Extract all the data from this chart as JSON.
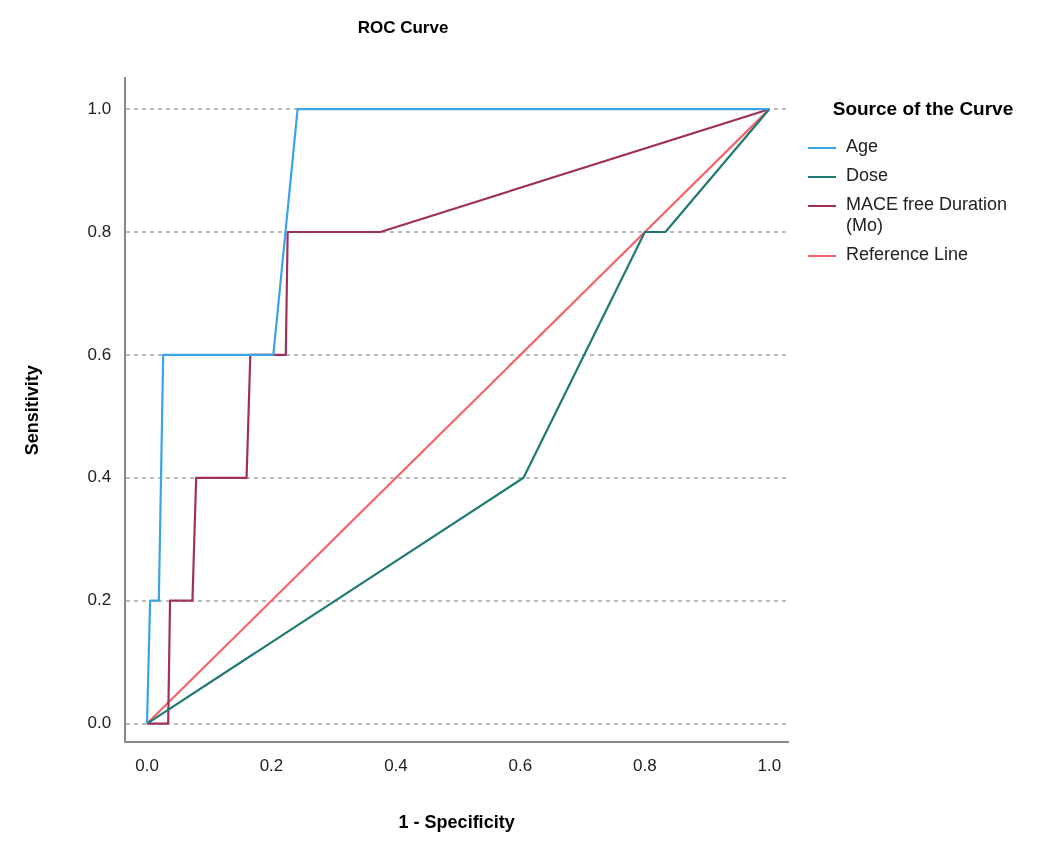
{
  "chart_data": {
    "type": "line",
    "title": "ROC Curve",
    "xlabel": "1 - Specificity",
    "ylabel": "Sensitivity",
    "legend_title": "Source of the Curve",
    "legend": "right",
    "grid": "y",
    "marker": "none",
    "line_style": "solid",
    "xlim": [
      -0.035,
      1.03
    ],
    "ylim": [
      -0.03,
      1.05
    ],
    "xticks": [
      {
        "value": 0,
        "label": "0.0"
      },
      {
        "value": 0.2,
        "label": "0.2"
      },
      {
        "value": 0.4,
        "label": "0.4"
      },
      {
        "value": 0.6,
        "label": "0.6"
      },
      {
        "value": 0.8,
        "label": "0.8"
      },
      {
        "value": 1,
        "label": "1.0"
      }
    ],
    "yticks": [
      {
        "value": 0,
        "label": "0.0"
      },
      {
        "value": 0.2,
        "label": "0.2"
      },
      {
        "value": 0.4,
        "label": "0.4"
      },
      {
        "value": 0.6,
        "label": "0.6"
      },
      {
        "value": 0.8,
        "label": "0.8"
      },
      {
        "value": 1,
        "label": "1.0"
      }
    ],
    "series": [
      {
        "name": "Age",
        "color": "#3ba3e8",
        "x": [
          0,
          0.005,
          0.019,
          0.026,
          0.203,
          0.242,
          1
        ],
        "values": [
          0,
          0.2,
          0.2,
          0.6,
          0.6,
          1,
          1
        ]
      },
      {
        "name": "Dose",
        "color": "#1f7a74",
        "x": [
          0,
          0.605,
          0.8,
          0.833,
          1
        ],
        "values": [
          0,
          0.4,
          0.8,
          0.8,
          1
        ]
      },
      {
        "name": "MACE free Duration (Mo)",
        "color": "#a0305a",
        "x": [
          0,
          0.034,
          0.037,
          0.073,
          0.079,
          0.16,
          0.166,
          0.223,
          0.226,
          0.375,
          1
        ],
        "values": [
          0,
          0,
          0.2,
          0.2,
          0.4,
          0.4,
          0.6,
          0.6,
          0.8,
          0.8,
          1
        ]
      },
      {
        "name": "Reference Line",
        "color": "#f4646a",
        "x": [
          0,
          1
        ],
        "values": [
          0,
          1
        ]
      }
    ]
  }
}
